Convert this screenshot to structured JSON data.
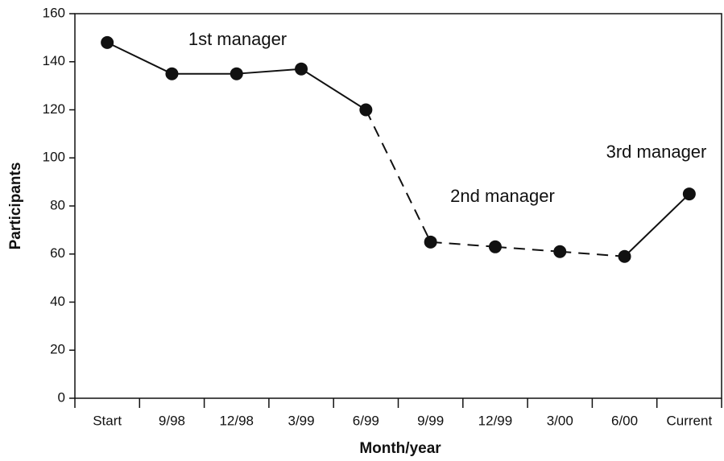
{
  "chart_data": {
    "type": "line",
    "x_label": "Month/year",
    "y_label": "Participants",
    "categories": [
      "Start",
      "9/98",
      "12/98",
      "3/99",
      "6/99",
      "9/99",
      "12/99",
      "3/00",
      "6/00",
      "Current"
    ],
    "series": [
      {
        "color": "#111111",
        "values": [
          148,
          135,
          135,
          137,
          120,
          65,
          63,
          61,
          59,
          85
        ]
      }
    ],
    "segment_styles": [
      "solid",
      "solid",
      "solid",
      "solid",
      "dashed",
      "dashed",
      "dashed",
      "dashed",
      "solid"
    ],
    "annotations": [
      "1st manager",
      "2nd manager",
      "3rd manager"
    ],
    "ylim": [
      0,
      160
    ],
    "yticks": [
      0,
      20,
      40,
      60,
      80,
      100,
      120,
      140,
      160
    ],
    "grid": false
  }
}
